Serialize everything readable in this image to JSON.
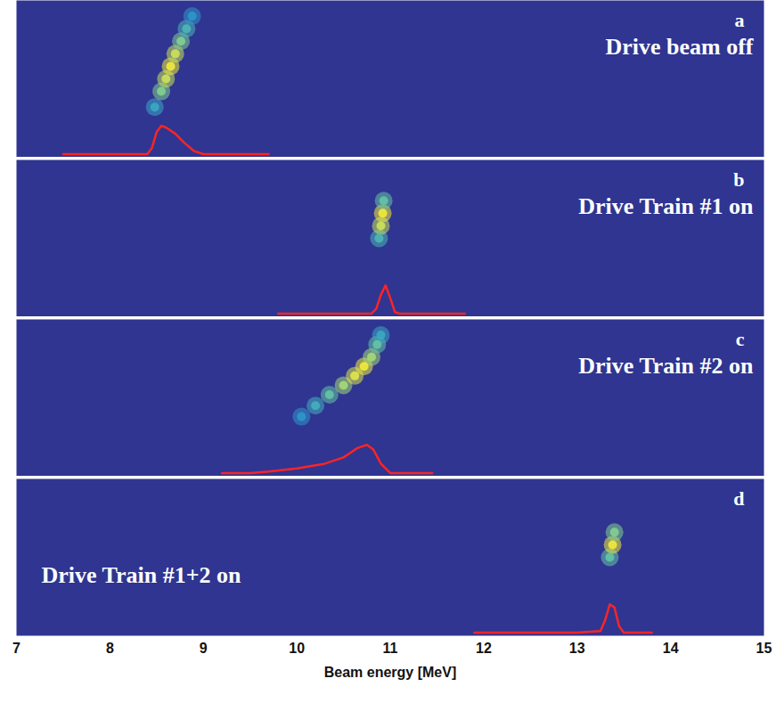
{
  "chart_data": [
    {
      "type": "line",
      "panel_label": "a",
      "title": "Drive beam off",
      "xlim": [
        7,
        15
      ],
      "ylim": [
        0,
        1
      ],
      "tick_labels": false,
      "color": "#ff2424",
      "x": [
        7.5,
        8.0,
        8.4,
        8.45,
        8.5,
        8.55,
        8.6,
        8.7,
        8.8,
        8.9,
        9.0,
        9.3,
        9.7
      ],
      "values": [
        0.02,
        0.02,
        0.02,
        0.06,
        0.16,
        0.2,
        0.19,
        0.15,
        0.09,
        0.04,
        0.02,
        0.02,
        0.02
      ],
      "spot": {
        "x": [
          8.48,
          8.55,
          8.6,
          8.65,
          8.7,
          8.76,
          8.82,
          8.88
        ],
        "y": [
          0.32,
          0.42,
          0.5,
          0.58,
          0.66,
          0.74,
          0.82,
          0.9
        ],
        "intensity": [
          0.4,
          0.7,
          0.9,
          1,
          0.9,
          0.7,
          0.5,
          0.3
        ]
      },
      "intensity_range": [
        0,
        1
      ]
    },
    {
      "type": "line",
      "panel_label": "b",
      "title": "Drive Train #1 on",
      "xlim": [
        7,
        15
      ],
      "ylim": [
        0,
        1
      ],
      "tick_labels": false,
      "color": "#ff2424",
      "x": [
        9.8,
        10.0,
        10.2,
        10.8,
        10.85,
        10.9,
        10.95,
        11.0,
        11.05,
        11.1,
        11.8
      ],
      "values": [
        0.02,
        0.02,
        0.02,
        0.02,
        0.05,
        0.14,
        0.2,
        0.12,
        0.03,
        0.02,
        0.02
      ],
      "spot": {
        "x": [
          10.88,
          10.9,
          10.92,
          10.93
        ],
        "y": [
          0.5,
          0.58,
          0.66,
          0.74
        ],
        "intensity": [
          0.5,
          0.9,
          1,
          0.6
        ]
      },
      "intensity_range": [
        0,
        1
      ]
    },
    {
      "type": "line",
      "panel_label": "c",
      "title": "Drive Train #2 on",
      "xlim": [
        7,
        15
      ],
      "ylim": [
        0,
        1
      ],
      "tick_labels": false,
      "color": "#ff2424",
      "x": [
        9.2,
        9.5,
        9.7,
        10.0,
        10.3,
        10.5,
        10.65,
        10.75,
        10.82,
        10.9,
        11.0,
        11.2,
        11.45
      ],
      "values": [
        0.02,
        0.02,
        0.03,
        0.05,
        0.08,
        0.12,
        0.18,
        0.2,
        0.17,
        0.08,
        0.02,
        0.02,
        0.02
      ],
      "spot": {
        "x": [
          10.05,
          10.2,
          10.35,
          10.5,
          10.62,
          10.72,
          10.8,
          10.86,
          10.9
        ],
        "y": [
          0.38,
          0.45,
          0.52,
          0.58,
          0.64,
          0.7,
          0.76,
          0.84,
          0.9
        ],
        "intensity": [
          0.3,
          0.45,
          0.6,
          0.8,
          0.95,
          1,
          0.8,
          0.6,
          0.4
        ]
      },
      "intensity_range": [
        0,
        1
      ]
    },
    {
      "type": "line",
      "panel_label": "d",
      "title": "Drive Train #1+2 on",
      "xlim": [
        7,
        15
      ],
      "ylim": [
        0,
        1
      ],
      "tick_labels": "x",
      "color": "#ff2424",
      "xticks": [
        7,
        8,
        9,
        10,
        11,
        12,
        13,
        14,
        15
      ],
      "x_label": "Beam energy [MeV]",
      "x": [
        11.9,
        12.5,
        13.0,
        13.25,
        13.3,
        13.35,
        13.4,
        13.45,
        13.5,
        13.6,
        13.8
      ],
      "values": [
        0.02,
        0.02,
        0.02,
        0.03,
        0.1,
        0.2,
        0.18,
        0.06,
        0.02,
        0.02,
        0.02
      ],
      "spot": {
        "x": [
          13.35,
          13.38,
          13.4
        ],
        "y": [
          0.5,
          0.58,
          0.66
        ],
        "intensity": [
          0.6,
          1,
          0.7
        ]
      },
      "intensity_range": [
        0,
        1
      ]
    }
  ]
}
